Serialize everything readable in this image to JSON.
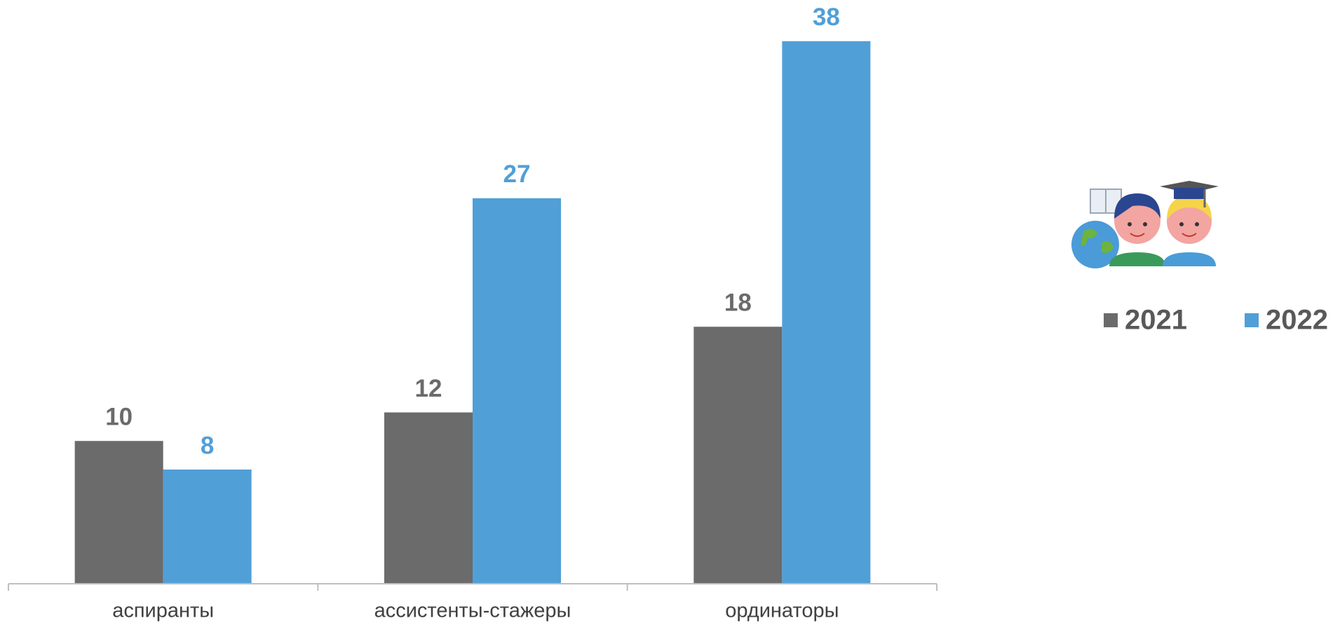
{
  "chart_data": {
    "type": "bar",
    "categories": [
      "аспиранты",
      "ассистенты-стажеры",
      "ординаторы"
    ],
    "series": [
      {
        "name": "2021",
        "color": "#6b6b6b",
        "values": [
          10,
          12,
          18
        ]
      },
      {
        "name": "2022",
        "color": "#519fd7",
        "values": [
          8,
          27,
          38
        ]
      }
    ],
    "ylim": [
      0,
      40
    ],
    "grid": false,
    "legend": "right",
    "data_labels": true
  }
}
